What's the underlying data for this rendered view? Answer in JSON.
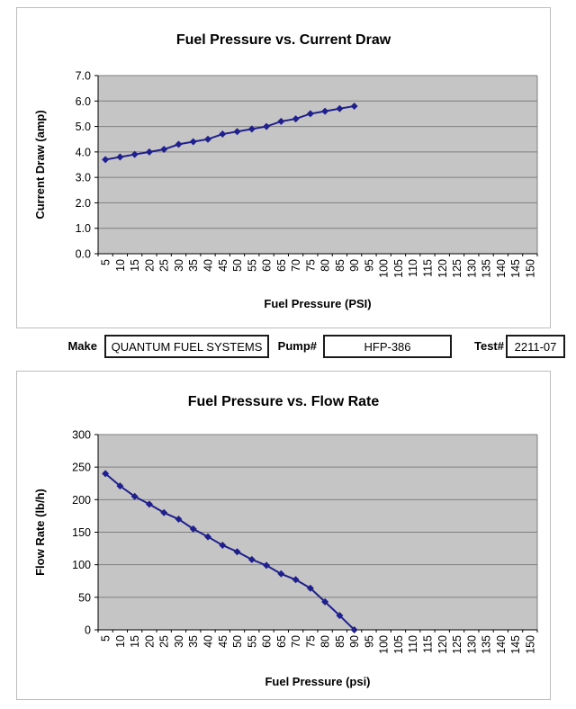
{
  "page": {
    "background": "#FFFFFF"
  },
  "form": {
    "fields": [
      {
        "label": "Make",
        "value": "QUANTUM FUEL SYSTEMS"
      },
      {
        "label": "Pump#",
        "value": "HFP-386"
      },
      {
        "label": "Test#",
        "value": "2211-07"
      }
    ]
  },
  "chart_data": [
    {
      "type": "line",
      "title": "Fuel Pressure vs. Current Draw",
      "xlabel": "Fuel Pressure (PSI)",
      "ylabel": "Current Draw (amp)",
      "categories": [
        5,
        10,
        15,
        20,
        25,
        30,
        35,
        40,
        45,
        50,
        55,
        60,
        65,
        70,
        75,
        80,
        85,
        90,
        95,
        100,
        105,
        110,
        115,
        120,
        125,
        130,
        135,
        140,
        145,
        150
      ],
      "series": [
        {
          "name": "Current Draw (amp)",
          "x": [
            5,
            10,
            15,
            20,
            25,
            30,
            35,
            40,
            45,
            50,
            55,
            60,
            65,
            70,
            75,
            80,
            85,
            90
          ],
          "values": [
            3.7,
            3.8,
            3.9,
            4.0,
            4.1,
            4.3,
            4.4,
            4.5,
            4.7,
            4.8,
            4.9,
            5.0,
            5.2,
            5.3,
            5.5,
            5.6,
            5.7,
            5.8
          ]
        }
      ],
      "ylim": [
        0,
        7
      ],
      "y_ticks": [
        0,
        1,
        2,
        3,
        4,
        5,
        6,
        7
      ],
      "y_tick_labels": [
        "0.0",
        "1.0",
        "2.0",
        "3.0",
        "4.0",
        "5.0",
        "6.0",
        "7.0"
      ],
      "grid": true,
      "legend": "none",
      "marker": "diamond",
      "colors": {
        "plot_bg": "#C5C5C5",
        "gridline": "#7F7F7F",
        "line": "#20208C",
        "marker": "#20208C",
        "axis": "#000000"
      }
    },
    {
      "type": "line",
      "title": "Fuel Pressure vs. Flow Rate",
      "xlabel": "Fuel Pressure (psi)",
      "ylabel": "Flow Rate (lb/h)",
      "categories": [
        5,
        10,
        15,
        20,
        25,
        30,
        35,
        40,
        45,
        50,
        55,
        60,
        65,
        70,
        75,
        80,
        85,
        90,
        95,
        100,
        105,
        110,
        115,
        120,
        125,
        130,
        135,
        140,
        145,
        150
      ],
      "series": [
        {
          "name": "Flow Rate (lb/h)",
          "x": [
            5,
            10,
            15,
            20,
            25,
            30,
            35,
            40,
            45,
            50,
            55,
            60,
            65,
            70,
            75,
            80,
            85,
            90
          ],
          "values": [
            240,
            221,
            205,
            193,
            180,
            170,
            155,
            143,
            130,
            120,
            108,
            99,
            86,
            77,
            64,
            43,
            22,
            0
          ]
        }
      ],
      "ylim": [
        0,
        300
      ],
      "y_ticks": [
        0,
        50,
        100,
        150,
        200,
        250,
        300
      ],
      "y_tick_labels": [
        "0",
        "50",
        "100",
        "150",
        "200",
        "250",
        "300"
      ],
      "grid": true,
      "legend": "none",
      "marker": "diamond",
      "colors": {
        "plot_bg": "#C5C5C5",
        "gridline": "#7F7F7F",
        "line": "#20208C",
        "marker": "#20208C",
        "axis": "#000000"
      }
    }
  ]
}
